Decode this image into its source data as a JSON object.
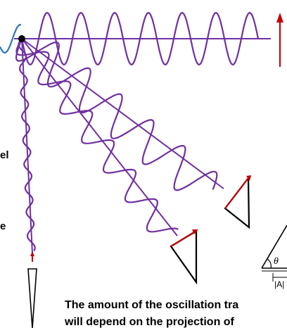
{
  "left_labels": [
    {
      "name": "left-label-el",
      "text": "el"
    },
    {
      "name": "left-label-e",
      "text": "e"
    }
  ],
  "caption": {
    "line1": "The amount of the oscillation tra",
    "line2": "will depend on the projection of"
  },
  "triangle_labels": {
    "theta": "θ",
    "A": "|A|"
  },
  "colors": {
    "wave": "#7030a0",
    "incoming_wave": "#2e75b6",
    "arrow": "#c00000",
    "stroke": "#000000",
    "background": "#ffffff"
  },
  "icons": {
    "origin_point": "dot"
  }
}
